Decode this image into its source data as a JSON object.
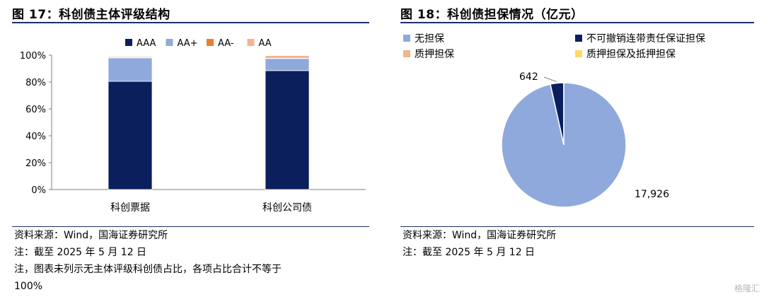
{
  "left": {
    "title": "图 17：科创债主体评级结构",
    "source": "资料来源：Wind，国海证券研究所",
    "note1": "注：截至 2025 年 5 月 12 日",
    "note2": "注，图表未列示无主体评级科创债占比，各项占比合计不等于",
    "note3": "100%"
  },
  "right": {
    "title": "图 18：科创债担保情况（亿元）",
    "source": "资料来源：Wind，国海证券研究所",
    "note1": "注：截至 2025 年 5 月 12 日"
  },
  "watermark": "格隆汇",
  "chart_data": [
    {
      "type": "bar",
      "stacked": true,
      "title": "科创债主体评级结构",
      "categories": [
        "科创票据",
        "科创公司债"
      ],
      "ylim": [
        0,
        100
      ],
      "yticks": [
        "0%",
        "20%",
        "40%",
        "60%",
        "80%",
        "100%"
      ],
      "legend_position": "top",
      "series": [
        {
          "name": "AAA",
          "values": [
            80.5,
            88.5
          ],
          "color": "#0b1f5c"
        },
        {
          "name": "AA+",
          "values": [
            17.5,
            9.0
          ],
          "color": "#8fa9dc"
        },
        {
          "name": "AA-",
          "values": [
            0.3,
            0.2
          ],
          "color": "#ed7d31"
        },
        {
          "name": "AA",
          "values": [
            0.7,
            2.0
          ],
          "color": "#f2b48d"
        }
      ]
    },
    {
      "type": "pie",
      "title": "科创债担保情况（亿元）",
      "legend_position": "top",
      "slices": [
        {
          "name": "无担保",
          "value": 17926,
          "label": "17,926",
          "color": "#8fa9dc"
        },
        {
          "name": "不可撤销连带责任保证担保",
          "value": 642,
          "label": "642",
          "color": "#0b1f5c"
        },
        {
          "name": "质押担保",
          "value": 3,
          "label": "",
          "color": "#f2b48d"
        },
        {
          "name": "质押担保及抵押担保",
          "value": 2,
          "label": "",
          "color": "#ffd966"
        }
      ]
    }
  ]
}
